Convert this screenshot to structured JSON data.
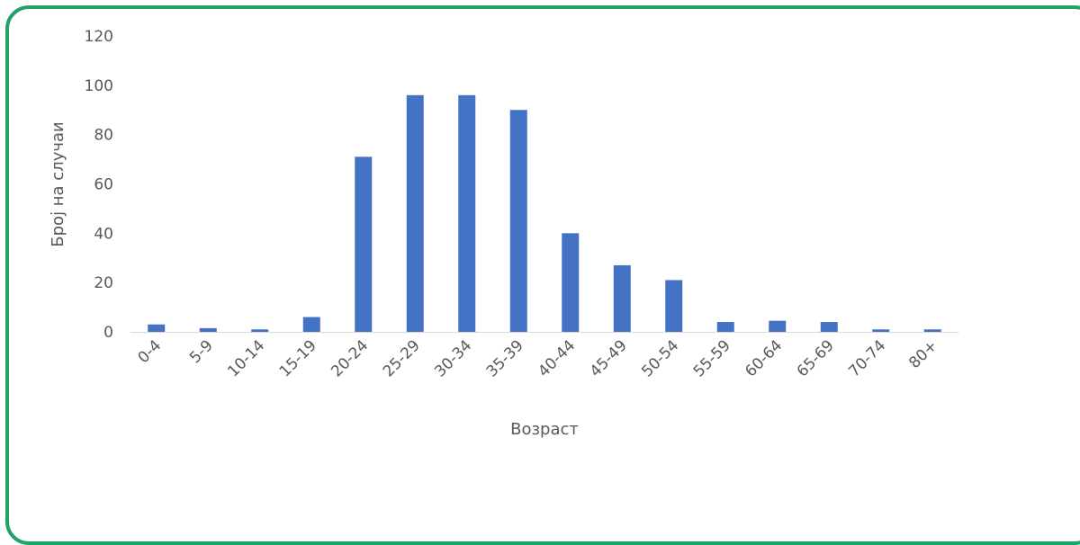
{
  "chart_data": {
    "type": "bar",
    "title": "",
    "xlabel": "Возраст",
    "ylabel": "Број на случаи",
    "ylim": [
      0,
      120
    ],
    "yticks": [
      0,
      20,
      40,
      60,
      80,
      100,
      120
    ],
    "categories": [
      "0-4",
      "5-9",
      "10-14",
      "15-19",
      "20-24",
      "25-29",
      "30-34",
      "35-39",
      "40-44",
      "45-49",
      "50-54",
      "55-59",
      "60-64",
      "65-69",
      "70-74",
      "80+"
    ],
    "values": [
      3,
      1.5,
      1,
      6,
      71,
      96,
      96,
      90,
      40,
      27,
      21,
      4,
      4.5,
      4,
      1,
      1
    ],
    "grid": false,
    "legend": "none",
    "colors": {
      "bar": "#4472c4",
      "axis_line": "#d9d9d9",
      "text": "#595959",
      "frame_border": "#1fa466"
    }
  }
}
